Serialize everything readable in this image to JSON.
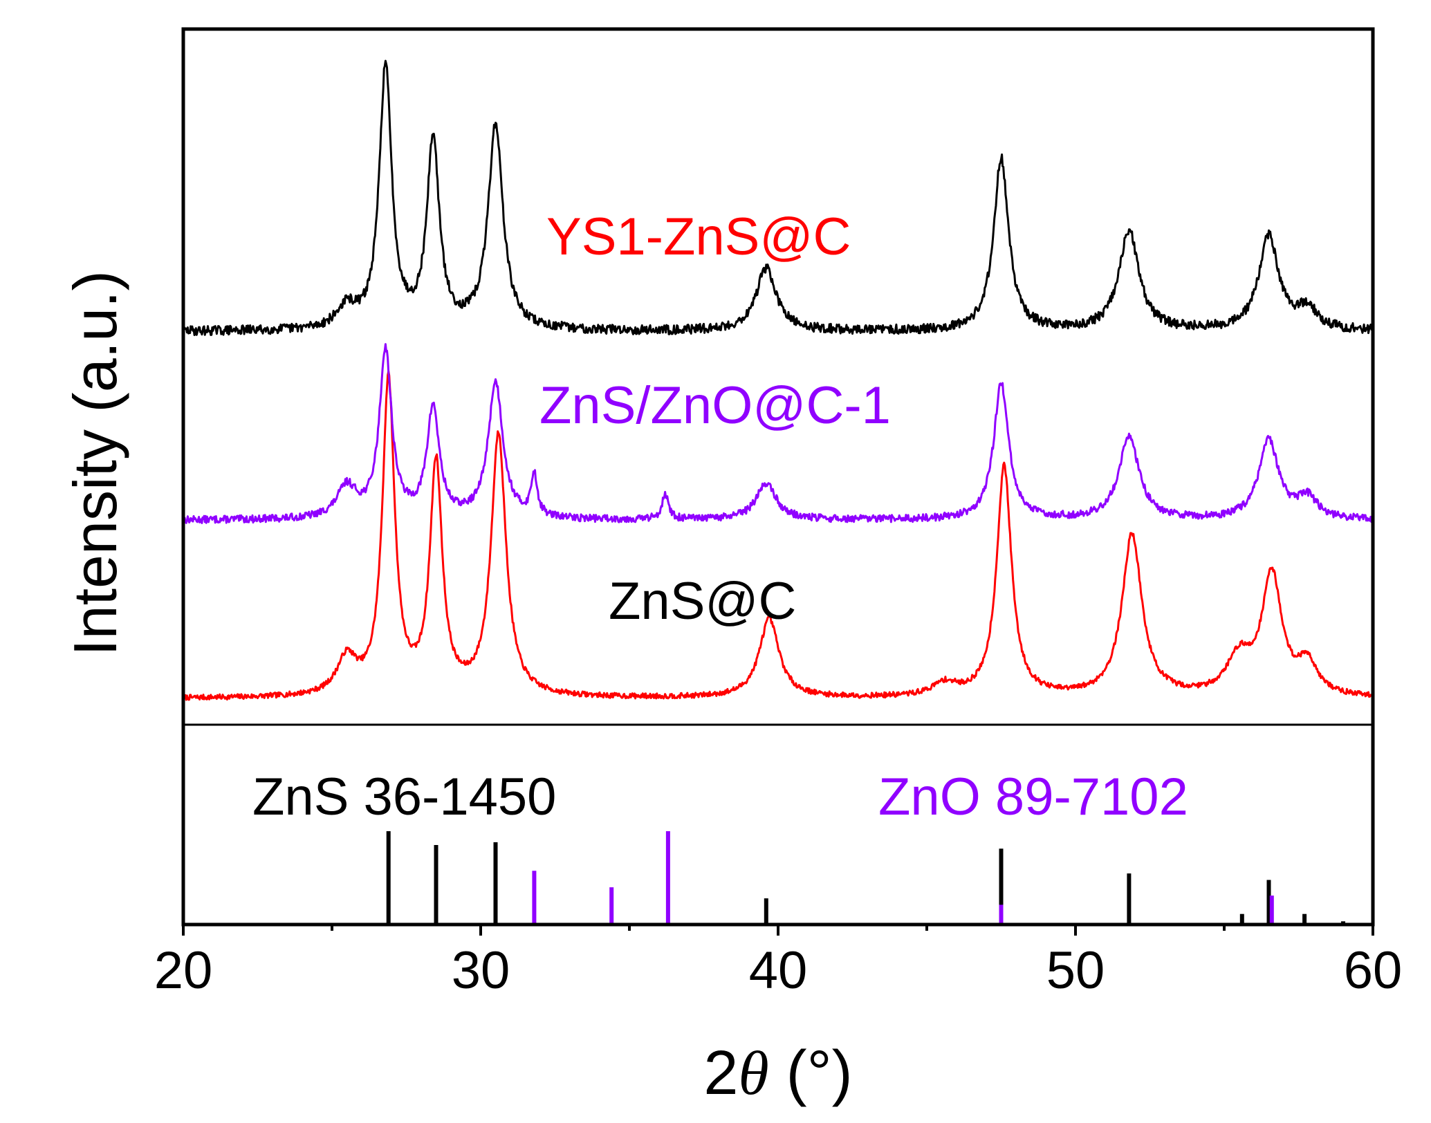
{
  "chart_data": {
    "type": "line",
    "title": "",
    "xlabel_prefix": "2",
    "xlabel_symbol": "θ",
    "xlabel_suffix": " (°)",
    "ylabel": "Intensity (a.u.)",
    "xlim": [
      20,
      60
    ],
    "x_ticks": [
      20,
      30,
      40,
      50,
      60
    ],
    "x_minor_ticks": [
      25,
      35,
      45,
      55
    ],
    "grid": false,
    "legend": "none",
    "peak_width": 0.6,
    "series": [
      {
        "name": "YS1-ZnS@C",
        "label": "YS1-ZnS@C",
        "color": "#ff0000",
        "baseline": 0.0,
        "noise": 0.05,
        "seed": 7,
        "peaks": [
          [
            25.5,
            0.35,
            0.8
          ],
          [
            26.9,
            3.0,
            0.5
          ],
          [
            28.5,
            2.2,
            0.5
          ],
          [
            30.6,
            2.5,
            0.6
          ],
          [
            39.7,
            0.75,
            0.8
          ],
          [
            45.6,
            0.12,
            1.0
          ],
          [
            47.6,
            2.2,
            0.6
          ],
          [
            51.9,
            1.55,
            0.8
          ],
          [
            55.5,
            0.35,
            1.0
          ],
          [
            56.6,
            1.15,
            0.8
          ],
          [
            57.8,
            0.3,
            0.8
          ]
        ]
      },
      {
        "name": "ZnS/ZnO@C-1",
        "label": "ZnS/ZnO@C-1",
        "color": "#9000ff",
        "baseline": 1.7,
        "noise": 0.07,
        "seed": 13,
        "peaks": [
          [
            25.5,
            0.3,
            0.8
          ],
          [
            26.8,
            1.6,
            0.5
          ],
          [
            28.4,
            1.05,
            0.5
          ],
          [
            30.5,
            1.3,
            0.6
          ],
          [
            31.8,
            0.4,
            0.25
          ],
          [
            36.2,
            0.25,
            0.25
          ],
          [
            39.6,
            0.35,
            0.8
          ],
          [
            47.5,
            1.3,
            0.6
          ],
          [
            51.8,
            0.8,
            0.8
          ],
          [
            56.5,
            0.75,
            0.8
          ],
          [
            57.8,
            0.2,
            0.8
          ]
        ]
      },
      {
        "name": "ZnS@C",
        "label": "ZnS@C",
        "color": "#000000",
        "baseline": 3.5,
        "noise": 0.09,
        "seed": 29,
        "peaks": [
          [
            25.5,
            0.2,
            0.8
          ],
          [
            26.8,
            2.5,
            0.5
          ],
          [
            28.4,
            1.8,
            0.5
          ],
          [
            30.5,
            1.95,
            0.6
          ],
          [
            39.6,
            0.6,
            0.8
          ],
          [
            47.5,
            1.65,
            0.6
          ],
          [
            51.8,
            0.95,
            0.8
          ],
          [
            56.5,
            0.9,
            0.8
          ],
          [
            57.8,
            0.2,
            0.8
          ]
        ]
      }
    ],
    "reference_patterns": [
      {
        "name": "ZnS 36-1450",
        "label": "ZnS 36-1450",
        "color": "#000000",
        "peaks": [
          [
            26.9,
            100
          ],
          [
            28.5,
            85
          ],
          [
            30.5,
            88
          ],
          [
            39.6,
            27
          ],
          [
            47.5,
            81
          ],
          [
            51.8,
            54
          ],
          [
            55.6,
            10
          ],
          [
            56.5,
            47
          ],
          [
            57.7,
            10
          ],
          [
            59.0,
            2
          ]
        ]
      },
      {
        "name": "ZnO 89-7102",
        "label": "ZnO 89-7102",
        "color": "#9000ff",
        "peaks": [
          [
            31.8,
            57
          ],
          [
            34.4,
            39
          ],
          [
            36.3,
            100
          ],
          [
            47.5,
            20
          ],
          [
            56.6,
            30
          ]
        ]
      }
    ]
  }
}
